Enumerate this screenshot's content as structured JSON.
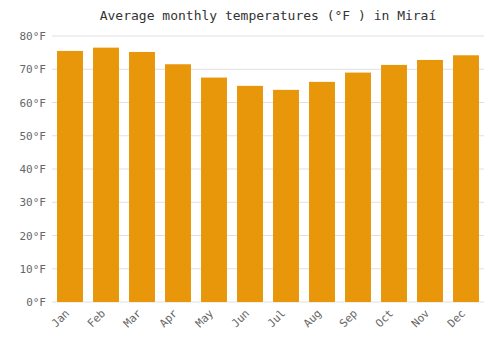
{
  "chart_data": {
    "type": "bar",
    "title": "Average monthly temperatures (°F ) in Miraí",
    "categories": [
      "Jan",
      "Feb",
      "Mar",
      "Apr",
      "May",
      "Jun",
      "Jul",
      "Aug",
      "Sep",
      "Oct",
      "Nov",
      "Dec"
    ],
    "values": [
      75.5,
      76.5,
      75.2,
      71.5,
      67.5,
      65.0,
      63.8,
      66.2,
      69.0,
      71.3,
      72.8,
      74.2
    ],
    "color": "#E8960A",
    "ylim": [
      0,
      80
    ],
    "yticks": [
      {
        "value": 0,
        "label": "0°F"
      },
      {
        "value": 10,
        "label": "10°F"
      },
      {
        "value": 20,
        "label": "20°F"
      },
      {
        "value": 30,
        "label": "30°F"
      },
      {
        "value": 40,
        "label": "40°F"
      },
      {
        "value": 50,
        "label": "50°F"
      },
      {
        "value": 60,
        "label": "60°F"
      },
      {
        "value": 70,
        "label": "70°F"
      },
      {
        "value": 80,
        "label": "80°F"
      }
    ],
    "grid": true
  }
}
